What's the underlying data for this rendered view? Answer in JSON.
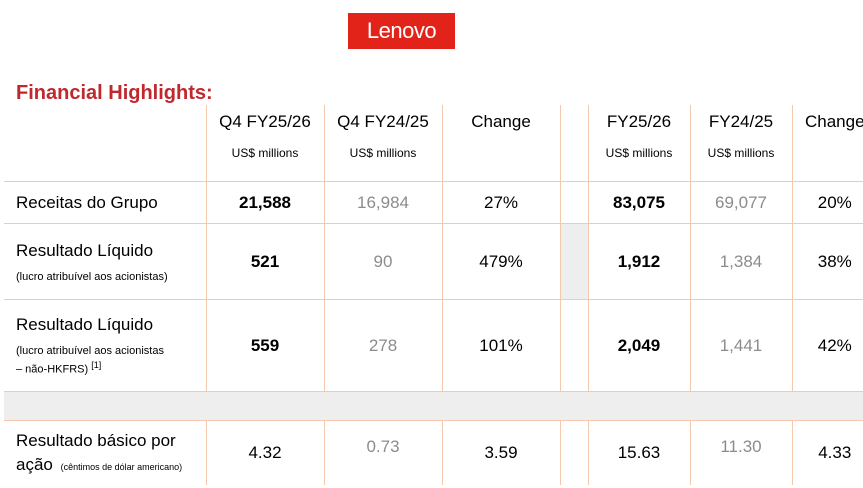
{
  "logo": {
    "text": "Lenovo"
  },
  "title": "Financial Highlights:",
  "headers": {
    "q4_current": {
      "period": "Q4 FY25/26",
      "unit": "US$ millions"
    },
    "q4_prior": {
      "period": "Q4 FY24/25",
      "unit": "US$ millions"
    },
    "q4_change": {
      "period": "Change"
    },
    "fy_current": {
      "period": "FY25/26",
      "unit": "US$ millions"
    },
    "fy_prior": {
      "period": "FY24/25",
      "unit": "US$ millions"
    },
    "fy_change": {
      "period": "Change"
    }
  },
  "rows": [
    {
      "label": "Receitas do Grupo",
      "q4_current": "21,588",
      "q4_prior": "16,984",
      "q4_change": "27%",
      "fy_current": "83,075",
      "fy_prior": "69,077",
      "fy_change": "20%"
    },
    {
      "label": "Resultado Líquido",
      "note": "(lucro atribuível aos acionistas)",
      "q4_current": "521",
      "q4_prior": "90",
      "q4_change": "479%",
      "fy_current": "1,912",
      "fy_prior": "1,384",
      "fy_change": "38%"
    },
    {
      "label": "Resultado Líquido",
      "note": "(lucro atribuível aos acionistas",
      "note2": "– não-HKFRS)",
      "footnote": "[1]",
      "q4_current": "559",
      "q4_prior": "278",
      "q4_change": "101%",
      "fy_current": "2,049",
      "fy_prior": "1,441",
      "fy_change": "42%"
    },
    {
      "label": "Resultado básico por",
      "label2": "ação",
      "note": "(cêntimos de dólar americano)",
      "q4_current": "4.32",
      "q4_prior": "0.73",
      "q4_change": "3.59",
      "fy_current": "15.63",
      "fy_prior": "11.30",
      "fy_change": "4.33"
    }
  ]
}
